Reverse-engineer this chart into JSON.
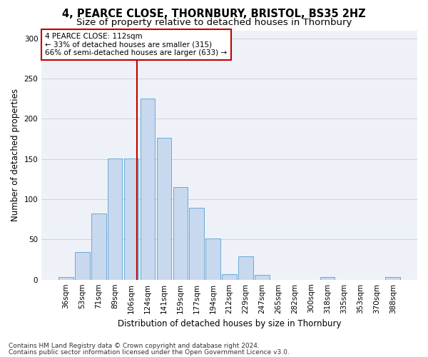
{
  "title1": "4, PEARCE CLOSE, THORNBURY, BRISTOL, BS35 2HZ",
  "title2": "Size of property relative to detached houses in Thornbury",
  "xlabel": "Distribution of detached houses by size in Thornbury",
  "ylabel": "Number of detached properties",
  "bar_color": "#c8d8ee",
  "bar_edge_color": "#6aaad4",
  "categories": [
    "36sqm",
    "53sqm",
    "71sqm",
    "89sqm",
    "106sqm",
    "124sqm",
    "141sqm",
    "159sqm",
    "177sqm",
    "194sqm",
    "212sqm",
    "229sqm",
    "247sqm",
    "265sqm",
    "282sqm",
    "300sqm",
    "318sqm",
    "335sqm",
    "353sqm",
    "370sqm",
    "388sqm"
  ],
  "values": [
    3,
    34,
    82,
    151,
    151,
    225,
    176,
    115,
    89,
    51,
    7,
    29,
    6,
    0,
    0,
    0,
    3,
    0,
    0,
    0,
    3
  ],
  "ylim": [
    0,
    310
  ],
  "yticks": [
    0,
    50,
    100,
    150,
    200,
    250,
    300
  ],
  "vline_color": "#c00000",
  "annotation_text": "4 PEARCE CLOSE: 112sqm\n← 33% of detached houses are smaller (315)\n66% of semi-detached houses are larger (633) →",
  "annotation_box_color": "#ffffff",
  "annotation_box_edge": "#c00000",
  "footer1": "Contains HM Land Registry data © Crown copyright and database right 2024.",
  "footer2": "Contains public sector information licensed under the Open Government Licence v3.0.",
  "grid_color": "#cccccc",
  "bg_color": "#eef2f8",
  "title1_fontsize": 10.5,
  "title2_fontsize": 9.5,
  "xlabel_fontsize": 8.5,
  "ylabel_fontsize": 8.5,
  "tick_fontsize": 7.5,
  "footer_fontsize": 6.5
}
